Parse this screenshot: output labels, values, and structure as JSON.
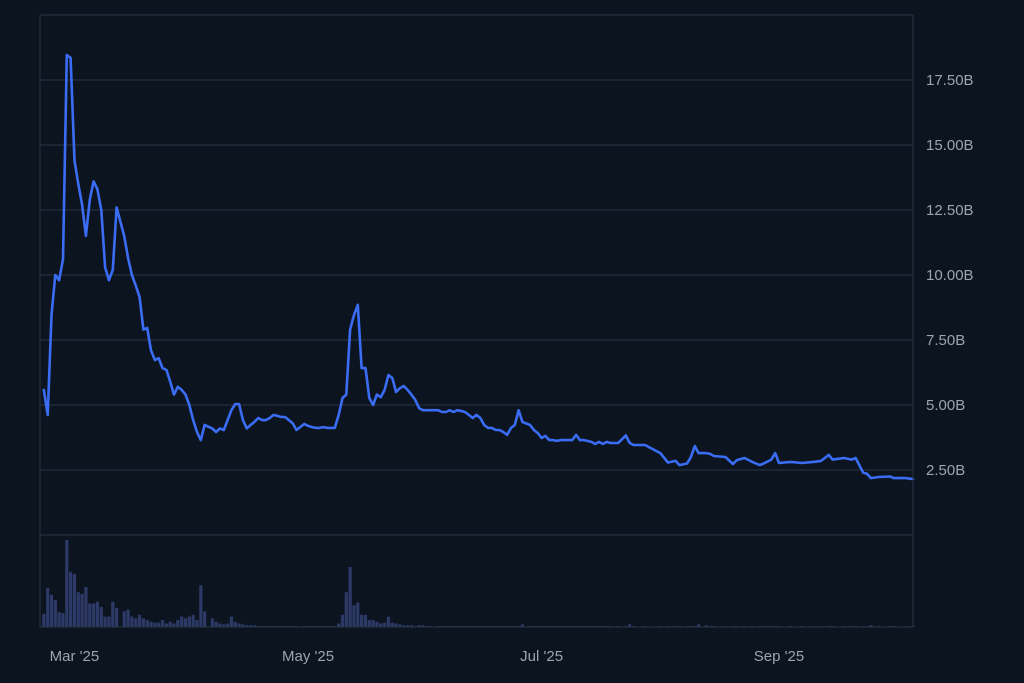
{
  "chart_data": {
    "type": "line",
    "title": "",
    "xlabel": "",
    "ylabel": "",
    "xlim": [
      "2025-02-20",
      "2025-10-06"
    ],
    "ylim": [
      0,
      20
    ],
    "grid": true,
    "y_axis_position": "right",
    "colors": {
      "background": "#0c1420",
      "line": "#3b6cf4",
      "grid": "#283344",
      "volume": "#2d3966",
      "tick_text": "#9ea4ae"
    },
    "y_ticks": [
      {
        "value": 2.5,
        "label": "2.50B"
      },
      {
        "value": 5,
        "label": "5.00B"
      },
      {
        "value": 7.5,
        "label": "7.50B"
      },
      {
        "value": 10,
        "label": "10.00B"
      },
      {
        "value": 12.5,
        "label": "12.50B"
      },
      {
        "value": 15,
        "label": "15.00B"
      },
      {
        "value": 17.5,
        "label": "17.50B"
      }
    ],
    "x_ticks": [
      {
        "date": "2025-03-01",
        "label": "Mar '25"
      },
      {
        "date": "2025-05-01",
        "label": "May '25"
      },
      {
        "date": "2025-07-01",
        "label": "Jul '25"
      },
      {
        "date": "2025-09-01",
        "label": "Sep '25"
      }
    ],
    "series": [
      {
        "unit": "B",
        "dates": [
          "2025-02-21",
          "2025-02-22",
          "2025-02-23",
          "2025-02-24",
          "2025-02-25",
          "2025-02-26",
          "2025-02-27",
          "2025-02-28",
          "2025-03-01",
          "2025-03-02",
          "2025-03-03",
          "2025-03-04",
          "2025-03-05",
          "2025-03-06",
          "2025-03-07",
          "2025-03-08",
          "2025-03-09",
          "2025-03-10",
          "2025-03-11",
          "2025-03-12",
          "2025-03-14",
          "2025-03-15",
          "2025-03-16",
          "2025-03-17",
          "2025-03-18",
          "2025-03-19",
          "2025-03-20",
          "2025-03-21",
          "2025-03-22",
          "2025-03-23",
          "2025-03-24",
          "2025-03-25",
          "2025-03-26",
          "2025-03-27",
          "2025-03-28",
          "2025-03-29",
          "2025-03-30",
          "2025-03-31",
          "2025-04-01",
          "2025-04-02",
          "2025-04-03",
          "2025-04-04",
          "2025-04-06",
          "2025-04-07",
          "2025-04-08",
          "2025-04-09",
          "2025-04-10",
          "2025-04-11",
          "2025-04-12",
          "2025-04-13",
          "2025-04-14",
          "2025-04-15",
          "2025-04-16",
          "2025-04-17",
          "2025-04-18",
          "2025-04-19",
          "2025-04-20",
          "2025-04-21",
          "2025-04-22",
          "2025-04-23",
          "2025-04-24",
          "2025-04-25",
          "2025-04-26",
          "2025-04-27",
          "2025-04-28",
          "2025-04-30",
          "2025-05-01",
          "2025-05-02",
          "2025-05-03",
          "2025-05-04",
          "2025-05-05",
          "2025-05-06",
          "2025-05-07",
          "2025-05-08",
          "2025-05-09",
          "2025-05-10",
          "2025-05-11",
          "2025-05-12",
          "2025-05-13",
          "2025-05-14",
          "2025-05-15",
          "2025-05-16",
          "2025-05-17",
          "2025-05-18",
          "2025-05-19",
          "2025-05-20",
          "2025-05-21",
          "2025-05-22",
          "2025-05-23",
          "2025-05-24",
          "2025-05-25",
          "2025-05-26",
          "2025-05-27",
          "2025-05-28",
          "2025-05-29",
          "2025-05-30",
          "2025-05-31",
          "2025-06-01",
          "2025-06-02",
          "2025-06-04",
          "2025-06-05",
          "2025-06-06",
          "2025-06-07",
          "2025-06-08",
          "2025-06-09",
          "2025-06-10",
          "2025-06-11",
          "2025-06-12",
          "2025-06-13",
          "2025-06-14",
          "2025-06-15",
          "2025-06-16",
          "2025-06-17",
          "2025-06-18",
          "2025-06-19",
          "2025-06-20",
          "2025-06-21",
          "2025-06-22",
          "2025-06-23",
          "2025-06-24",
          "2025-06-25",
          "2025-06-26",
          "2025-06-28",
          "2025-06-29",
          "2025-06-30",
          "2025-07-01",
          "2025-07-02",
          "2025-07-03",
          "2025-07-04",
          "2025-07-05",
          "2025-07-06",
          "2025-07-07",
          "2025-07-08",
          "2025-07-09",
          "2025-07-10",
          "2025-07-11",
          "2025-07-12",
          "2025-07-13",
          "2025-07-14",
          "2025-07-15",
          "2025-07-16",
          "2025-07-17",
          "2025-07-18",
          "2025-07-19",
          "2025-07-21",
          "2025-07-23",
          "2025-07-24",
          "2025-07-25",
          "2025-07-28",
          "2025-08-01",
          "2025-08-03",
          "2025-08-05",
          "2025-08-06",
          "2025-08-08",
          "2025-08-09",
          "2025-08-10",
          "2025-08-11",
          "2025-08-13",
          "2025-08-14",
          "2025-08-15",
          "2025-08-18",
          "2025-08-20",
          "2025-08-21",
          "2025-08-23",
          "2025-08-25",
          "2025-08-27",
          "2025-08-28",
          "2025-08-30",
          "2025-08-31",
          "2025-09-01",
          "2025-09-04",
          "2025-09-07",
          "2025-09-10",
          "2025-09-12",
          "2025-09-14",
          "2025-09-15",
          "2025-09-18",
          "2025-09-20",
          "2025-09-21",
          "2025-09-23",
          "2025-09-24",
          "2025-09-25",
          "2025-09-27",
          "2025-09-30",
          "2025-10-01",
          "2025-10-04",
          "2025-10-06"
        ],
        "values": [
          5.58,
          4.62,
          8.46,
          10.0,
          9.8,
          10.6,
          18.46,
          18.35,
          14.4,
          13.5,
          12.7,
          11.5,
          12.9,
          13.6,
          13.3,
          12.5,
          10.3,
          9.8,
          10.2,
          12.6,
          11.5,
          10.65,
          10.0,
          9.6,
          9.15,
          7.9,
          7.96,
          7.1,
          6.73,
          6.8,
          6.42,
          6.35,
          5.9,
          5.4,
          5.7,
          5.58,
          5.4,
          5.0,
          4.42,
          3.96,
          3.65,
          4.23,
          4.1,
          3.96,
          4.1,
          4.04,
          4.42,
          4.8,
          5.04,
          5.04,
          4.42,
          4.1,
          4.23,
          4.35,
          4.5,
          4.42,
          4.42,
          4.5,
          4.62,
          4.58,
          4.54,
          4.54,
          4.42,
          4.3,
          4.04,
          4.27,
          4.2,
          4.15,
          4.12,
          4.12,
          4.15,
          4.12,
          4.12,
          4.12,
          4.62,
          5.27,
          5.4,
          7.9,
          8.46,
          8.85,
          6.42,
          6.42,
          5.27,
          5.0,
          5.4,
          5.3,
          5.58,
          6.15,
          6.04,
          5.5,
          5.65,
          5.73,
          5.58,
          5.4,
          5.2,
          4.88,
          4.8,
          4.8,
          4.8,
          4.8,
          4.73,
          4.73,
          4.8,
          4.73,
          4.8,
          4.77,
          4.73,
          4.62,
          4.5,
          4.62,
          4.5,
          4.23,
          4.12,
          4.12,
          4.04,
          4.04,
          3.96,
          3.85,
          4.12,
          4.23,
          4.8,
          4.35,
          4.23,
          4.04,
          3.92,
          3.73,
          3.81,
          3.65,
          3.65,
          3.62,
          3.65,
          3.65,
          3.65,
          3.65,
          3.85,
          3.65,
          3.65,
          3.62,
          3.58,
          3.5,
          3.58,
          3.5,
          3.58,
          3.54,
          3.54,
          3.83,
          3.54,
          3.46,
          3.46,
          3.15,
          2.79,
          2.85,
          2.69,
          2.75,
          3.0,
          3.42,
          3.15,
          3.15,
          3.12,
          3.04,
          3.0,
          2.73,
          2.88,
          2.96,
          2.81,
          2.69,
          2.75,
          2.9,
          3.15,
          2.77,
          2.81,
          2.77,
          2.81,
          2.85,
          3.08,
          2.9,
          2.96,
          2.9,
          2.96,
          2.4,
          2.35,
          2.19,
          2.23,
          2.25,
          2.19,
          2.19,
          2.15
        ],
        "volume_relative": [
          15,
          45,
          37,
          31,
          17,
          16,
          100,
          63,
          61,
          40,
          38,
          46,
          27,
          27,
          29,
          23,
          12,
          12,
          29,
          22,
          18,
          20,
          12,
          10,
          14,
          10,
          8,
          6,
          5,
          5,
          8,
          4,
          6,
          4,
          8,
          12,
          10,
          12,
          14,
          8,
          48,
          18,
          10,
          6,
          4,
          3,
          4,
          12,
          6,
          4,
          3,
          2,
          2,
          2,
          1,
          1,
          1,
          1,
          1,
          1,
          1,
          1,
          1,
          1,
          1,
          1,
          1,
          1,
          1,
          1,
          1,
          1,
          1,
          1,
          4,
          14,
          40,
          69,
          25,
          28,
          14,
          14,
          8,
          8,
          6,
          4,
          5,
          12,
          5,
          4,
          3,
          2,
          2,
          2,
          1,
          2,
          2,
          1,
          1,
          1,
          1,
          1,
          1,
          1,
          1,
          1,
          1,
          1,
          1,
          1,
          1,
          1,
          1,
          1,
          1,
          1,
          1,
          1,
          1,
          1,
          1,
          3,
          1,
          1,
          1,
          1,
          1,
          1,
          1,
          1,
          1,
          1,
          1,
          1,
          1,
          1,
          1,
          1,
          1,
          1,
          1,
          1,
          1,
          1,
          1,
          1,
          3,
          1,
          1,
          1,
          1,
          1,
          1,
          1,
          1,
          1,
          3,
          2,
          1,
          1,
          1,
          1,
          1,
          1,
          1,
          1,
          1,
          1,
          1,
          1,
          1,
          1,
          1,
          1,
          1,
          1,
          1,
          1,
          1,
          1,
          1,
          2,
          1,
          1,
          1,
          1,
          1,
          1,
          1
        ]
      }
    ]
  }
}
